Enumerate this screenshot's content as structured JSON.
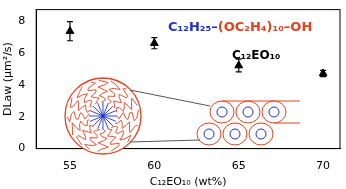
{
  "chart_data": {
    "type": "scatter",
    "x_label": "C₁₂EO₁₀ (wt%)",
    "y_label": "DLaw (μm²/s)",
    "x": [
      55,
      60,
      65,
      70
    ],
    "values": [
      7.35,
      6.6,
      5.2,
      4.7
    ],
    "errors": [
      0.6,
      0.35,
      0.4,
      0.2
    ],
    "color": "#000000",
    "marker": "triangle",
    "xlim": [
      53,
      71
    ],
    "xticks": [
      55,
      60,
      65,
      70
    ],
    "ylim": [
      0,
      8.7
    ],
    "yticks": [
      0,
      2,
      4,
      6,
      8
    ],
    "grid": false,
    "annotations": [
      {
        "parts": [
          {
            "text": "C₁₂H₂₅–",
            "color": "#2233cc"
          },
          {
            "text": "(OC₂H₄)₁₀–OH",
            "color": "#e8401c"
          }
        ]
      },
      {
        "parts": [
          {
            "text": "C₁₂EO₁₀",
            "color": "#000000"
          }
        ]
      }
    ]
  }
}
